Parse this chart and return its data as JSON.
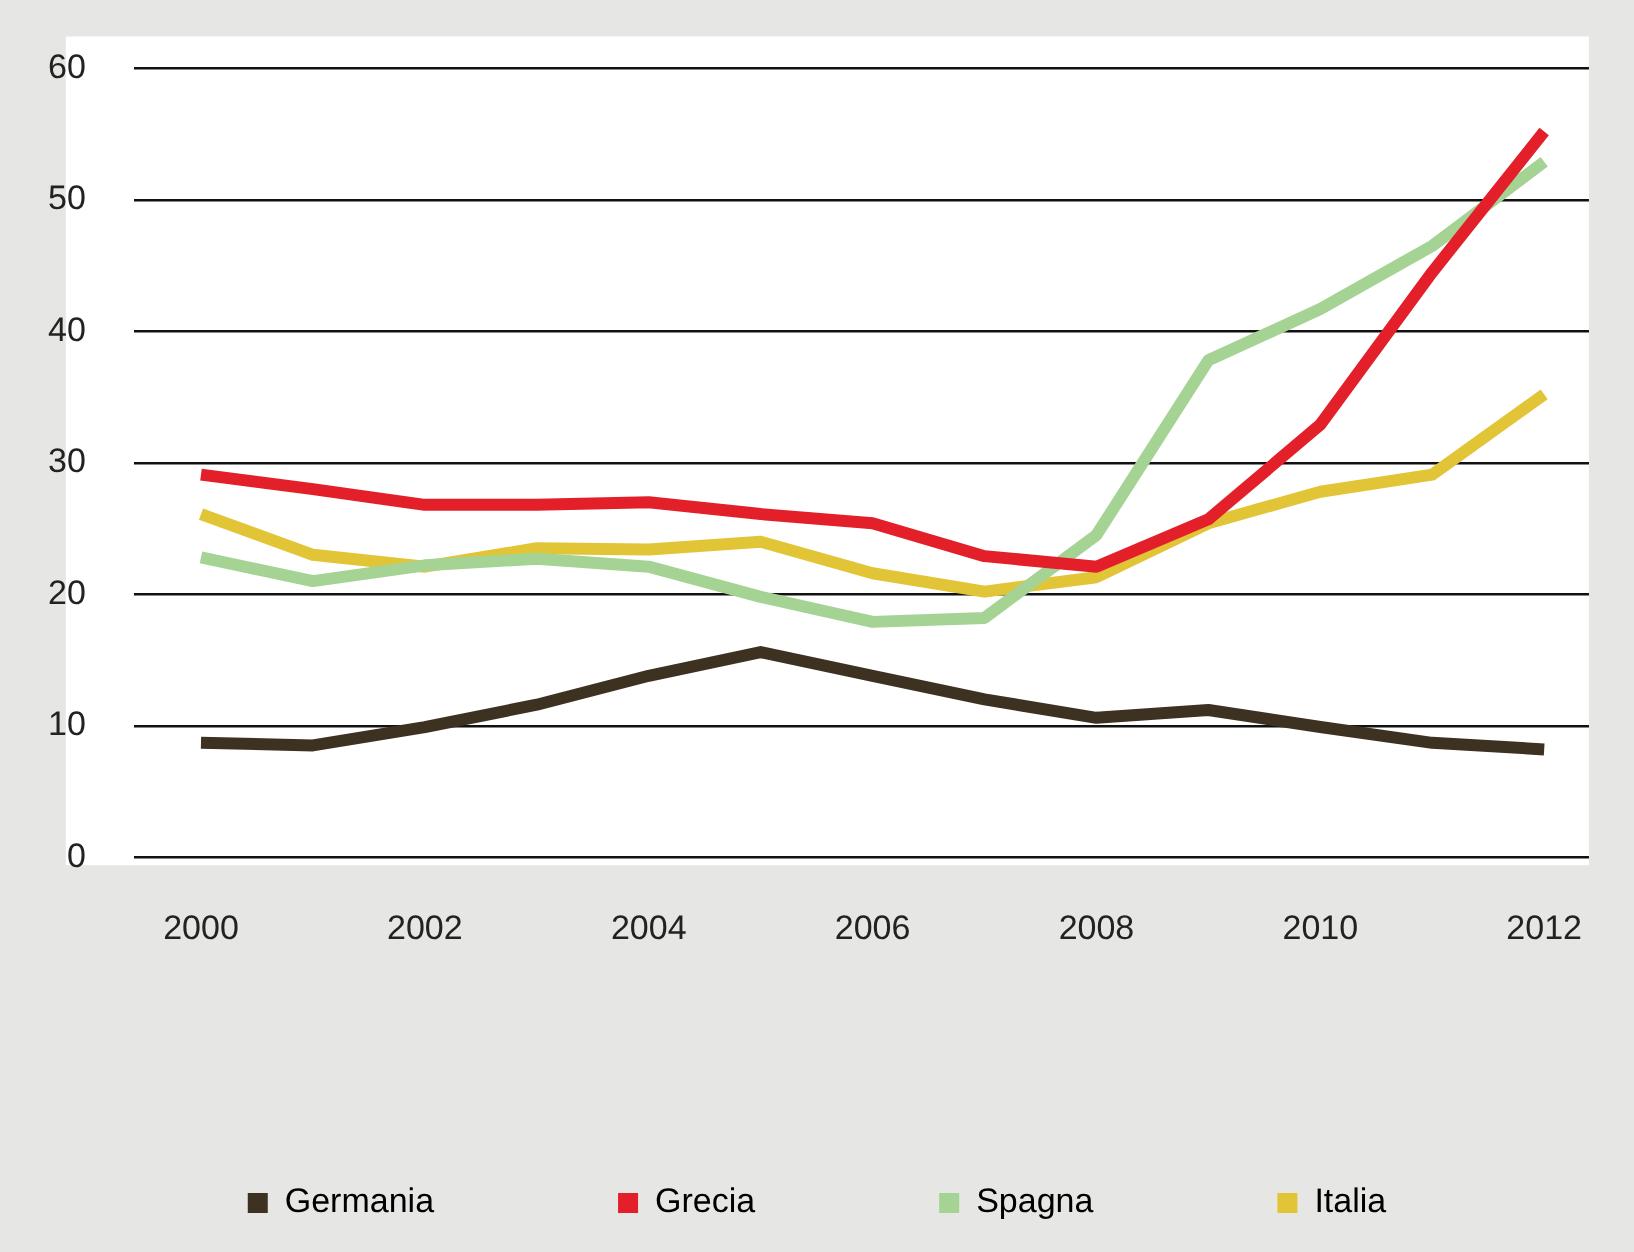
{
  "chart_data": {
    "type": "line",
    "x": [
      2000,
      2001,
      2002,
      2003,
      2004,
      2005,
      2006,
      2007,
      2008,
      2009,
      2010,
      2011,
      2012
    ],
    "series": [
      {
        "name": "Germania",
        "color": "#3d3122",
        "values": [
          8.7,
          8.5,
          9.9,
          11.6,
          13.8,
          15.6,
          13.8,
          12.0,
          10.6,
          11.2,
          9.9,
          8.7,
          8.2
        ]
      },
      {
        "name": "Grecia",
        "color": "#e3202a",
        "values": [
          29.1,
          28.0,
          26.8,
          26.8,
          27.0,
          26.1,
          25.4,
          22.9,
          22.1,
          25.7,
          32.9,
          44.5,
          55.2
        ]
      },
      {
        "name": "Spagna",
        "color": "#a5d393",
        "values": [
          22.8,
          21.0,
          22.2,
          22.7,
          22.1,
          19.8,
          17.9,
          18.2,
          24.5,
          37.8,
          41.7,
          46.5,
          52.9
        ]
      },
      {
        "name": "Italia",
        "color": "#e2c536",
        "values": [
          26.1,
          23.0,
          22.1,
          23.5,
          23.4,
          24.0,
          21.6,
          20.2,
          21.3,
          25.4,
          27.8,
          29.1,
          35.2
        ]
      }
    ],
    "xlim": [
      1999.4,
      2012.4
    ],
    "xticks": [
      2000,
      2002,
      2004,
      2006,
      2008,
      2010,
      2012
    ],
    "ylim": [
      0,
      60
    ],
    "yticks": [
      0,
      10,
      20,
      30,
      40,
      50,
      60
    ],
    "grid": "y",
    "legend": "bottom",
    "marker": "none",
    "line_style": "solid"
  }
}
